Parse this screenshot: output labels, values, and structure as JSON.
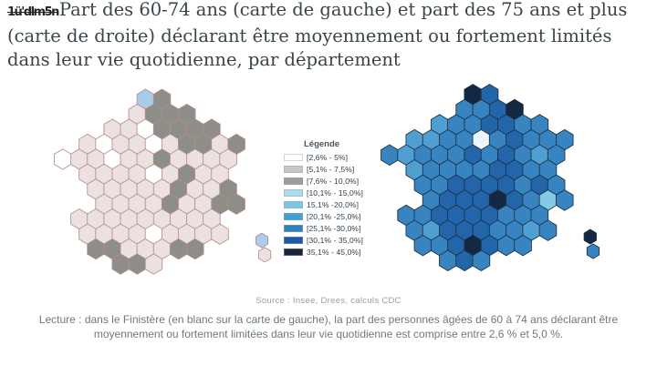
{
  "title": {
    "garbled_prefix": "1ü'dlm5n",
    "text": "Part des 60-74 ans (carte de gauche) et part des 75 ans et plus (carte de droite) déclarant être moyennement ou fortement limités dans leur vie quotidienne, par département"
  },
  "legend": {
    "title": "Légende",
    "items": [
      {
        "label": "[2,6% - 5%]",
        "color": "#ffffff"
      },
      {
        "label": "[5,1% - 7,5%]",
        "color": "#c7c7c7"
      },
      {
        "label": "[7,6% - 10,0%]",
        "color": "#9d9d9d"
      },
      {
        "label": "[10,1% - 15,0%]",
        "color": "#abdcf1"
      },
      {
        "label": "15,1% -20,0%]",
        "color": "#7cc7e8"
      },
      {
        "label": "[20,1% -25,0%]",
        "color": "#41a0d6"
      },
      {
        "label": "[25,1% -30,0%]",
        "color": "#2f83bd"
      },
      {
        "label": "[30,1% - 35,0%]",
        "color": "#1a5aa6"
      },
      {
        "label": "35,1% - 45,0%]",
        "color": "#16243e"
      }
    ]
  },
  "source": "Source : Insee, Drees, calculs CDC",
  "lecture": {
    "line1": "Lecture : dans le Finistère (en blanc sur la carte de gauche), la part des personnes âgées de 60 à 74 ans déclarant être",
    "line2": "moyennement ou fortement limitées dans leur vie quotidienne est comprise entre 2,6 % et 5,0 %."
  },
  "maps": {
    "left": {
      "label": "Part des 60-74 ans",
      "stroke": "#b98a8a",
      "palette": {
        "0": "#ffffff",
        "1": "#eae1e0",
        "2": "#8e8e88",
        "3": "#a5cde9",
        "4": "#a9cdee"
      },
      "tiles": [
        ".....32......",
        "....1222.....",
        "...1102222...",
        ".1011012212..",
        "01101121111..",
        ".111101211...",
        "..111112112..",
        "..111121122..",
        ".111111111...",
        ".111101111...",
        "..2211122....",
        "...221......."
      ],
      "corsica": [
        "4",
        "1"
      ]
    },
    "right": {
      "label": "Part des 75 ans et plus",
      "stroke": "#1c2f42",
      "palette": {
        "0": "#edf5fa",
        "4": "#85c9e6",
        "5": "#4f9fd2",
        "6": "#3884c0",
        "7": "#2365a9",
        "8": "#142843"
      },
      "tiles": [
        ".....87......",
        "....6678.....",
        "...5667766...",
        ".5566067666..",
        "65666767656..",
        ".566667766...",
        "..667777676..",
        "..677787646..",
        ".667777666...",
        ".657776656...",
        "..6678766....",
        "...676......."
      ],
      "corsica": [
        "8",
        "6"
      ]
    }
  },
  "chart_data": {
    "type": "choropleth",
    "title": "Part des 60-74 ans (carte de gauche) et part des 75 ans et plus (carte de droite) déclarant être moyennement ou fortement limités dans leur vie quotidienne, par département",
    "geography": "France métropolitaine, par département",
    "legend_position": "center, between the two maps",
    "classes": [
      "[2,6% - 5%]",
      "[5,1% - 7,5%]",
      "[7,6% - 10,0%]",
      "[10,1% - 15,0%]",
      "15,1% -20,0%]",
      "[20,1% -25,0%]",
      "[25,1% -30,0%]",
      "[30,1% - 35,0%]",
      "35,1% - 45,0%]"
    ],
    "class_colors": [
      "#ffffff",
      "#c7c7c7",
      "#9d9d9d",
      "#abdcf1",
      "#7cc7e8",
      "#41a0d6",
      "#2f83bd",
      "#1a5aa6",
      "#16243e"
    ],
    "maps": [
      {
        "id": "left",
        "population": "60-74 ans",
        "overall_pattern": "La plupart des départements entre 2,6% et 10,0% (teintes blanches/grises); quelques départements gris foncé (7,6-10,0%) dans le nord-est, le centre, les Alpes et les Pyrénées; Somme et Haute-Corse en bleu clair (10,1-20,0%)",
        "known_values": [
          {
            "area": "Finistère",
            "value": "entre 2,6 % et 5,0 % (en blanc)"
          }
        ]
      },
      {
        "id": "right",
        "population": "75 ans et plus",
        "overall_pattern": "La plupart des départements entre 20,1% et 35,0% (bleus moyens à foncés); nord (Pas-de-Calais), un département du Massif central, un département du sud et la Haute-Corse en bleu nuit (35,1-45,0%); Paris très clair",
        "known_values": []
      }
    ],
    "source": "Source : Insee, Drees, calculs CDC",
    "note": "Lecture : dans le Finistère (en blanc sur la carte de gauche), la part des personnes âgées de 60 à 74 ans déclarant être moyennement ou fortement limitées dans leur vie quotidienne est comprise entre 2,6 % et 5,0 %."
  }
}
